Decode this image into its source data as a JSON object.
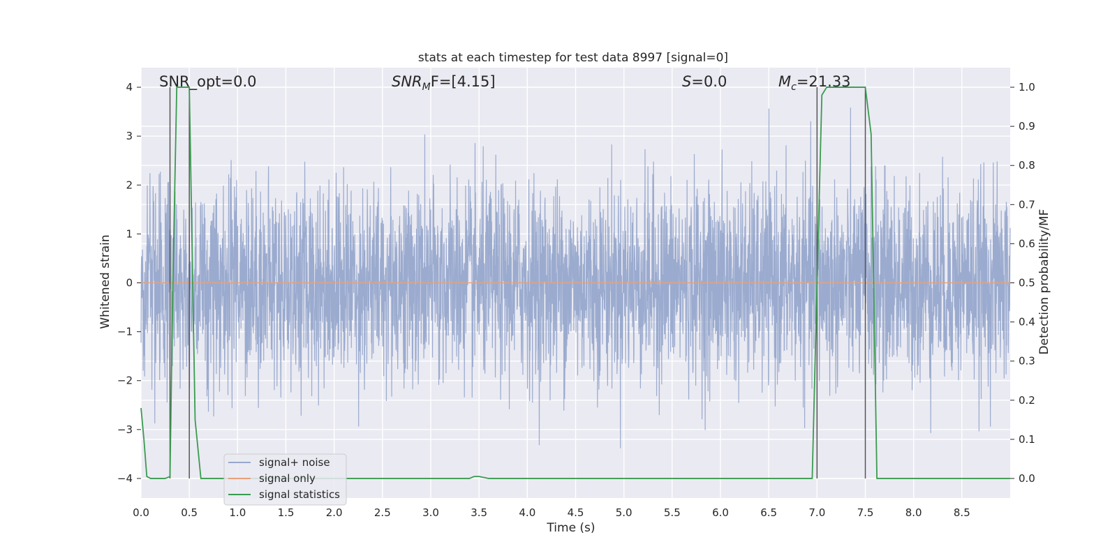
{
  "chart_data": {
    "type": "line",
    "title": "stats at each timestep for test data 8997 [signal=0]",
    "xlabel": "Time (s)",
    "ylabel": "Whitened strain",
    "ylabel_right": "Detection probability/MF",
    "xlim": [
      0,
      9.0
    ],
    "ylim": [
      -4.4,
      4.4
    ],
    "ylim_right": [
      -0.05,
      1.05
    ],
    "x_ticks": [
      "0.0",
      "0.5",
      "1.0",
      "1.5",
      "2.0",
      "2.5",
      "3.0",
      "3.5",
      "4.0",
      "4.5",
      "5.0",
      "5.5",
      "6.0",
      "6.5",
      "7.0",
      "7.5",
      "8.0",
      "8.5"
    ],
    "y_ticks": [
      "4",
      "3",
      "2",
      "1",
      "0",
      "−1",
      "−2",
      "−3",
      "−4"
    ],
    "y_right_ticks": [
      "1.0",
      "0.9",
      "0.8",
      "0.7",
      "0.6",
      "0.5",
      "0.4",
      "0.3",
      "0.2",
      "0.1",
      "0.0"
    ],
    "grid": true,
    "legend_position": "lower-left",
    "annotations": [
      {
        "text": "SNR_opt=0.0",
        "italic_prefix": "",
        "sub": "",
        "rest": ""
      },
      {
        "text": "SNR_MF=[4.15]",
        "italic_prefix": "SNR",
        "sub": "M",
        "rest": "F=[4.15]"
      },
      {
        "text": "S=0.0",
        "italic_prefix": "S",
        "sub": "",
        "rest": "=0.0"
      },
      {
        "text": "M_c=21.33",
        "italic_prefix": "M",
        "sub": "c",
        "rest": "=21.33"
      }
    ],
    "vertical_lines_x": [
      0.3,
      0.5,
      7.0,
      7.5
    ],
    "series": [
      {
        "name": "signal+ noise",
        "color": "#97a8cc",
        "description": "whitened noise, approx. Gaussian with std 1, range about -3.6 to 3.7",
        "x_range": [
          0,
          9.0
        ],
        "spread": 1.0
      },
      {
        "name": "signal only",
        "color": "#e6a07a",
        "x": [
          0,
          9.0
        ],
        "y": [
          0,
          0
        ]
      },
      {
        "name": "signal statistics",
        "color": "#3a9b4f",
        "axis": "right",
        "x": [
          0,
          0.03,
          0.06,
          0.1,
          0.15,
          0.2,
          0.25,
          0.3,
          0.33,
          0.37,
          0.43,
          0.5,
          0.56,
          0.62,
          0.67,
          3.4,
          3.45,
          3.5,
          3.6,
          3.65,
          6.95,
          7.0,
          7.05,
          7.1,
          7.45,
          7.5,
          7.56,
          7.62,
          7.66,
          9.0
        ],
        "y": [
          0.18,
          0.1,
          0.005,
          0.0,
          0.0,
          0.0,
          0.0,
          0.005,
          0.5,
          1.0,
          1.0,
          1.0,
          0.15,
          0.0,
          0.0,
          0.0,
          0.005,
          0.005,
          0.0,
          0.0,
          0.0,
          0.5,
          0.98,
          1.0,
          1.0,
          1.0,
          0.88,
          0.0,
          0.0,
          0.0
        ]
      }
    ],
    "colors": {
      "background": "#eaeaf2",
      "grid": "#ffffff",
      "vline": "#555555"
    }
  }
}
